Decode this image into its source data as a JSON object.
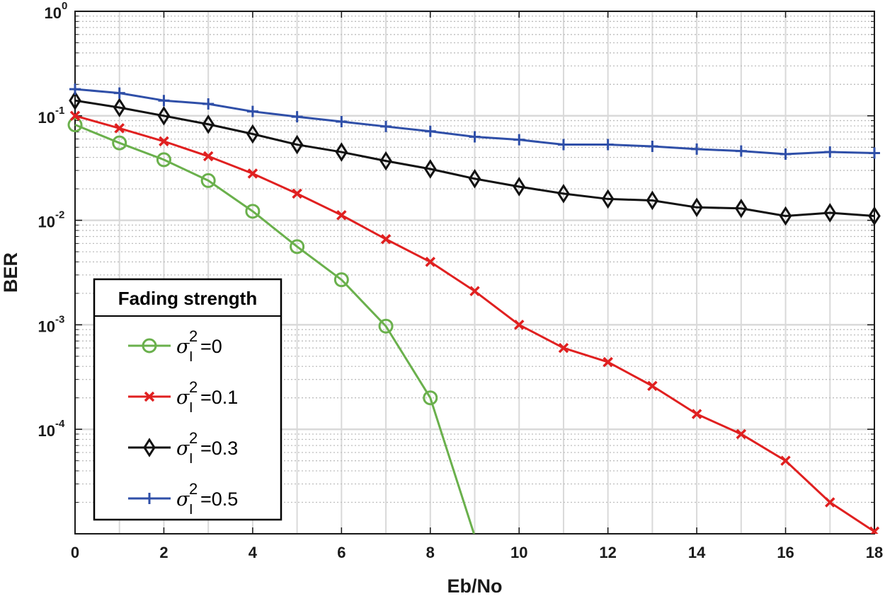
{
  "chart_data": {
    "type": "line",
    "title": "",
    "xlabel": "Eb/No",
    "ylabel": "BER",
    "xlim": [
      0,
      18
    ],
    "ylim": [
      1e-05,
      1
    ],
    "yscale": "log",
    "grid": true,
    "x_ticks": [
      "0",
      "2",
      "4",
      "6",
      "8",
      "10",
      "12",
      "14",
      "16",
      "18"
    ],
    "y_ticks": [
      {
        "base": "10",
        "exp": "0",
        "value": 1
      },
      {
        "base": "10",
        "exp": "-1",
        "value": 0.1
      },
      {
        "base": "10",
        "exp": "-2",
        "value": 0.01
      },
      {
        "base": "10",
        "exp": "-3",
        "value": 0.001
      },
      {
        "base": "10",
        "exp": "-4",
        "value": 0.0001
      }
    ],
    "legend": {
      "title": "Fading strength",
      "position": "lower-left",
      "symbol": "σ",
      "subscript": "I",
      "superscript": "2"
    },
    "series": [
      {
        "name": "σI²=0",
        "legend_value": "=0",
        "color": "#6ab04c",
        "marker": "circle",
        "x": [
          0,
          1,
          2,
          3,
          4,
          5,
          6,
          7,
          8,
          9
        ],
        "y": [
          0.082,
          0.055,
          0.038,
          0.024,
          0.0122,
          0.0056,
          0.0027,
          0.00097,
          0.0002,
          9.5e-06
        ]
      },
      {
        "name": "σI²=0.1",
        "legend_value": "=0.1",
        "color": "#e02020",
        "marker": "x",
        "x": [
          0,
          1,
          2,
          3,
          4,
          5,
          6,
          7,
          8,
          9,
          10,
          11,
          12,
          13,
          14,
          15,
          16,
          17,
          18
        ],
        "y": [
          0.1,
          0.076,
          0.057,
          0.041,
          0.028,
          0.018,
          0.0112,
          0.0066,
          0.004,
          0.0021,
          0.001,
          0.0006,
          0.00044,
          0.00026,
          0.00014,
          9e-05,
          5e-05,
          2e-05,
          1.05e-05
        ]
      },
      {
        "name": "σI²=0.3",
        "legend_value": "=0.3",
        "color": "#111111",
        "marker": "diamond",
        "x": [
          0,
          1,
          2,
          3,
          4,
          5,
          6,
          7,
          8,
          9,
          10,
          11,
          12,
          13,
          14,
          15,
          16,
          17,
          18
        ],
        "y": [
          0.14,
          0.12,
          0.1,
          0.083,
          0.067,
          0.053,
          0.045,
          0.037,
          0.031,
          0.025,
          0.021,
          0.018,
          0.016,
          0.0155,
          0.0133,
          0.013,
          0.011,
          0.0118,
          0.011
        ]
      },
      {
        "name": "σI²=0.5",
        "legend_value": "=0.5",
        "color": "#2f4fa8",
        "marker": "plus",
        "x": [
          0,
          1,
          2,
          3,
          4,
          5,
          6,
          7,
          8,
          9,
          10,
          11,
          12,
          13,
          14,
          15,
          16,
          17,
          18
        ],
        "y": [
          0.18,
          0.165,
          0.14,
          0.13,
          0.11,
          0.098,
          0.088,
          0.079,
          0.071,
          0.063,
          0.059,
          0.053,
          0.053,
          0.051,
          0.048,
          0.046,
          0.043,
          0.045,
          0.044
        ]
      }
    ]
  }
}
